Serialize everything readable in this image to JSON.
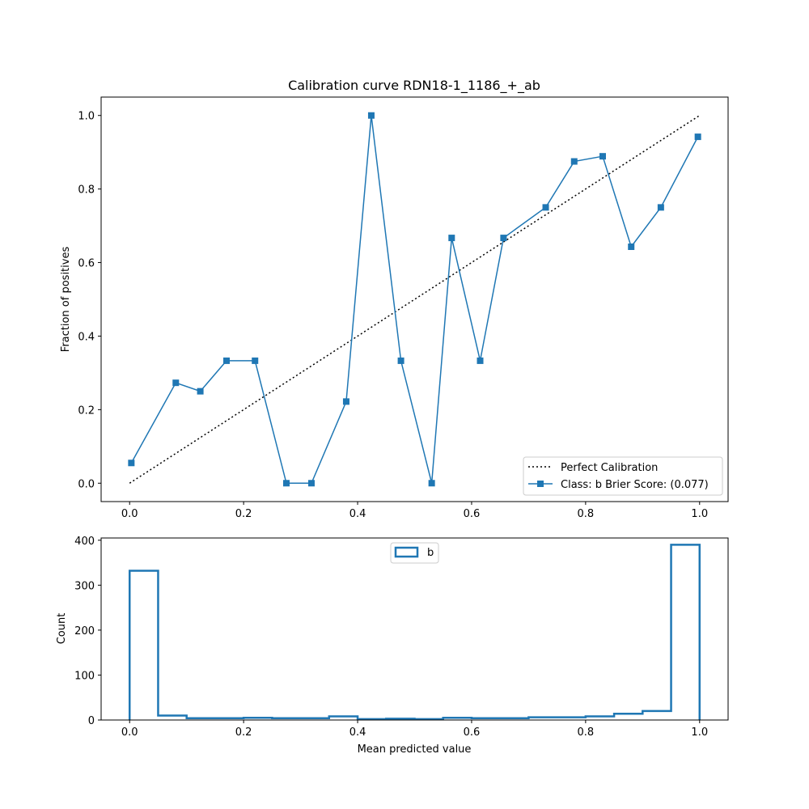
{
  "chart_data": [
    {
      "type": "line",
      "title": "Calibration curve RDN18-1_1186_+_ab",
      "xlabel": "",
      "ylabel": "Fraction of positives",
      "xlim": [
        -0.05,
        1.05
      ],
      "ylim": [
        -0.05,
        1.05
      ],
      "x_ticks": [
        "0.0",
        "0.2",
        "0.4",
        "0.6",
        "0.8",
        "1.0"
      ],
      "y_ticks": [
        "0.0",
        "0.2",
        "0.4",
        "0.6",
        "0.8",
        "1.0"
      ],
      "grid": false,
      "legend_position": "lower-right",
      "series": [
        {
          "name": "Perfect Calibration",
          "style": "dotted",
          "color": "#000000",
          "x": [
            0,
            1
          ],
          "y": [
            0,
            1
          ]
        },
        {
          "name": "Class: b Brier Score: (0.077)",
          "style": "line-square-markers",
          "color": "#1f77b4",
          "x": [
            0.003,
            0.081,
            0.124,
            0.17,
            0.22,
            0.275,
            0.319,
            0.38,
            0.424,
            0.476,
            0.53,
            0.565,
            0.615,
            0.656,
            0.73,
            0.78,
            0.83,
            0.88,
            0.932,
            0.997
          ],
          "y": [
            0.055,
            0.273,
            0.25,
            0.333,
            0.333,
            0.0,
            0.0,
            0.222,
            1.0,
            0.333,
            0.0,
            0.667,
            0.333,
            0.667,
            0.75,
            0.875,
            0.889,
            0.643,
            0.75,
            0.942
          ]
        }
      ]
    },
    {
      "type": "histogram",
      "title": "",
      "xlabel": "Mean predicted value",
      "ylabel": "Count",
      "xlim": [
        -0.05,
        1.05
      ],
      "ylim": [
        0,
        405
      ],
      "x_ticks": [
        "0.0",
        "0.2",
        "0.4",
        "0.6",
        "0.8",
        "1.0"
      ],
      "y_ticks": [
        "0",
        "100",
        "200",
        "300",
        "400"
      ],
      "grid": false,
      "legend_position": "top-center",
      "series": [
        {
          "name": "b",
          "color": "#1f77b4",
          "bin_edges": [
            0.0,
            0.05,
            0.1,
            0.15,
            0.2,
            0.25,
            0.3,
            0.35,
            0.4,
            0.45,
            0.5,
            0.55,
            0.6,
            0.65,
            0.7,
            0.75,
            0.8,
            0.85,
            0.9,
            0.95,
            1.0
          ],
          "counts": [
            332,
            10,
            4,
            4,
            5,
            4,
            4,
            8,
            2,
            3,
            2,
            5,
            4,
            4,
            6,
            6,
            8,
            14,
            20,
            390
          ]
        }
      ]
    }
  ]
}
